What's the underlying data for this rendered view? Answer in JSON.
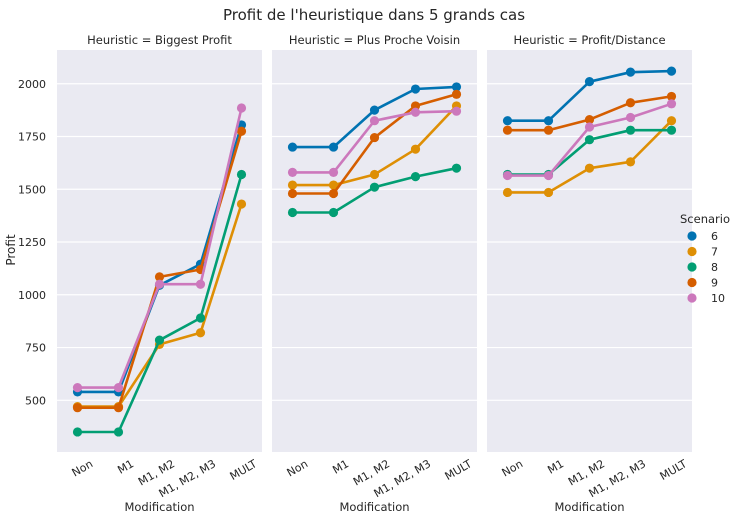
{
  "chart_data": {
    "type": "line",
    "title": "Profit de l'heuristique dans 5 grands cas",
    "ylabel": "Profit",
    "xlabel": "Modification",
    "ylim": [
      255,
      2160
    ],
    "yticks": [
      500,
      750,
      1000,
      1250,
      1500,
      1750,
      2000
    ],
    "ytick_labels": [
      "500",
      "750",
      "1000",
      "1250",
      "1500",
      "1750",
      "2000"
    ],
    "categories": [
      "Non",
      "M1",
      "M1, M2",
      "M1, M2, M3",
      "MULT"
    ],
    "grid": true,
    "legend": {
      "title": "Scenario",
      "placement": "right",
      "entries": [
        {
          "label": "6",
          "color": "#0173b2"
        },
        {
          "label": "7",
          "color": "#de8f05"
        },
        {
          "label": "8",
          "color": "#029e73"
        },
        {
          "label": "9",
          "color": "#d55e00"
        },
        {
          "label": "10",
          "color": "#cc78bc"
        }
      ]
    },
    "panels": [
      {
        "title": "Heuristic = Biggest Profit",
        "series": [
          {
            "name": "6",
            "color": "#0173b2",
            "values": [
              540,
              540,
              1045,
              1145,
              1805
            ]
          },
          {
            "name": "7",
            "color": "#de8f05",
            "values": [
              470,
              470,
              765,
              820,
              1430
            ]
          },
          {
            "name": "8",
            "color": "#029e73",
            "values": [
              350,
              350,
              785,
              890,
              1570
            ]
          },
          {
            "name": "9",
            "color": "#d55e00",
            "values": [
              465,
              465,
              1085,
              1120,
              1775
            ]
          },
          {
            "name": "10",
            "color": "#cc78bc",
            "values": [
              560,
              560,
              1050,
              1050,
              1885
            ]
          }
        ]
      },
      {
        "title": "Heuristic = Plus Proche Voisin",
        "series": [
          {
            "name": "6",
            "color": "#0173b2",
            "values": [
              1700,
              1700,
              1875,
              1975,
              1985
            ]
          },
          {
            "name": "7",
            "color": "#de8f05",
            "values": [
              1520,
              1520,
              1570,
              1690,
              1895
            ]
          },
          {
            "name": "8",
            "color": "#029e73",
            "values": [
              1390,
              1390,
              1510,
              1560,
              1600
            ]
          },
          {
            "name": "9",
            "color": "#d55e00",
            "values": [
              1480,
              1480,
              1745,
              1895,
              1950
            ]
          },
          {
            "name": "10",
            "color": "#cc78bc",
            "values": [
              1580,
              1580,
              1825,
              1865,
              1870
            ]
          }
        ]
      },
      {
        "title": "Heuristic = Profit/Distance",
        "series": [
          {
            "name": "6",
            "color": "#0173b2",
            "values": [
              1825,
              1825,
              2010,
              2055,
              2060
            ]
          },
          {
            "name": "7",
            "color": "#de8f05",
            "values": [
              1485,
              1485,
              1600,
              1630,
              1825
            ]
          },
          {
            "name": "8",
            "color": "#029e73",
            "values": [
              1570,
              1570,
              1735,
              1780,
              1780
            ]
          },
          {
            "name": "9",
            "color": "#d55e00",
            "values": [
              1780,
              1780,
              1830,
              1910,
              1940
            ]
          },
          {
            "name": "10",
            "color": "#cc78bc",
            "values": [
              1565,
              1565,
              1795,
              1840,
              1905
            ]
          }
        ]
      }
    ]
  }
}
